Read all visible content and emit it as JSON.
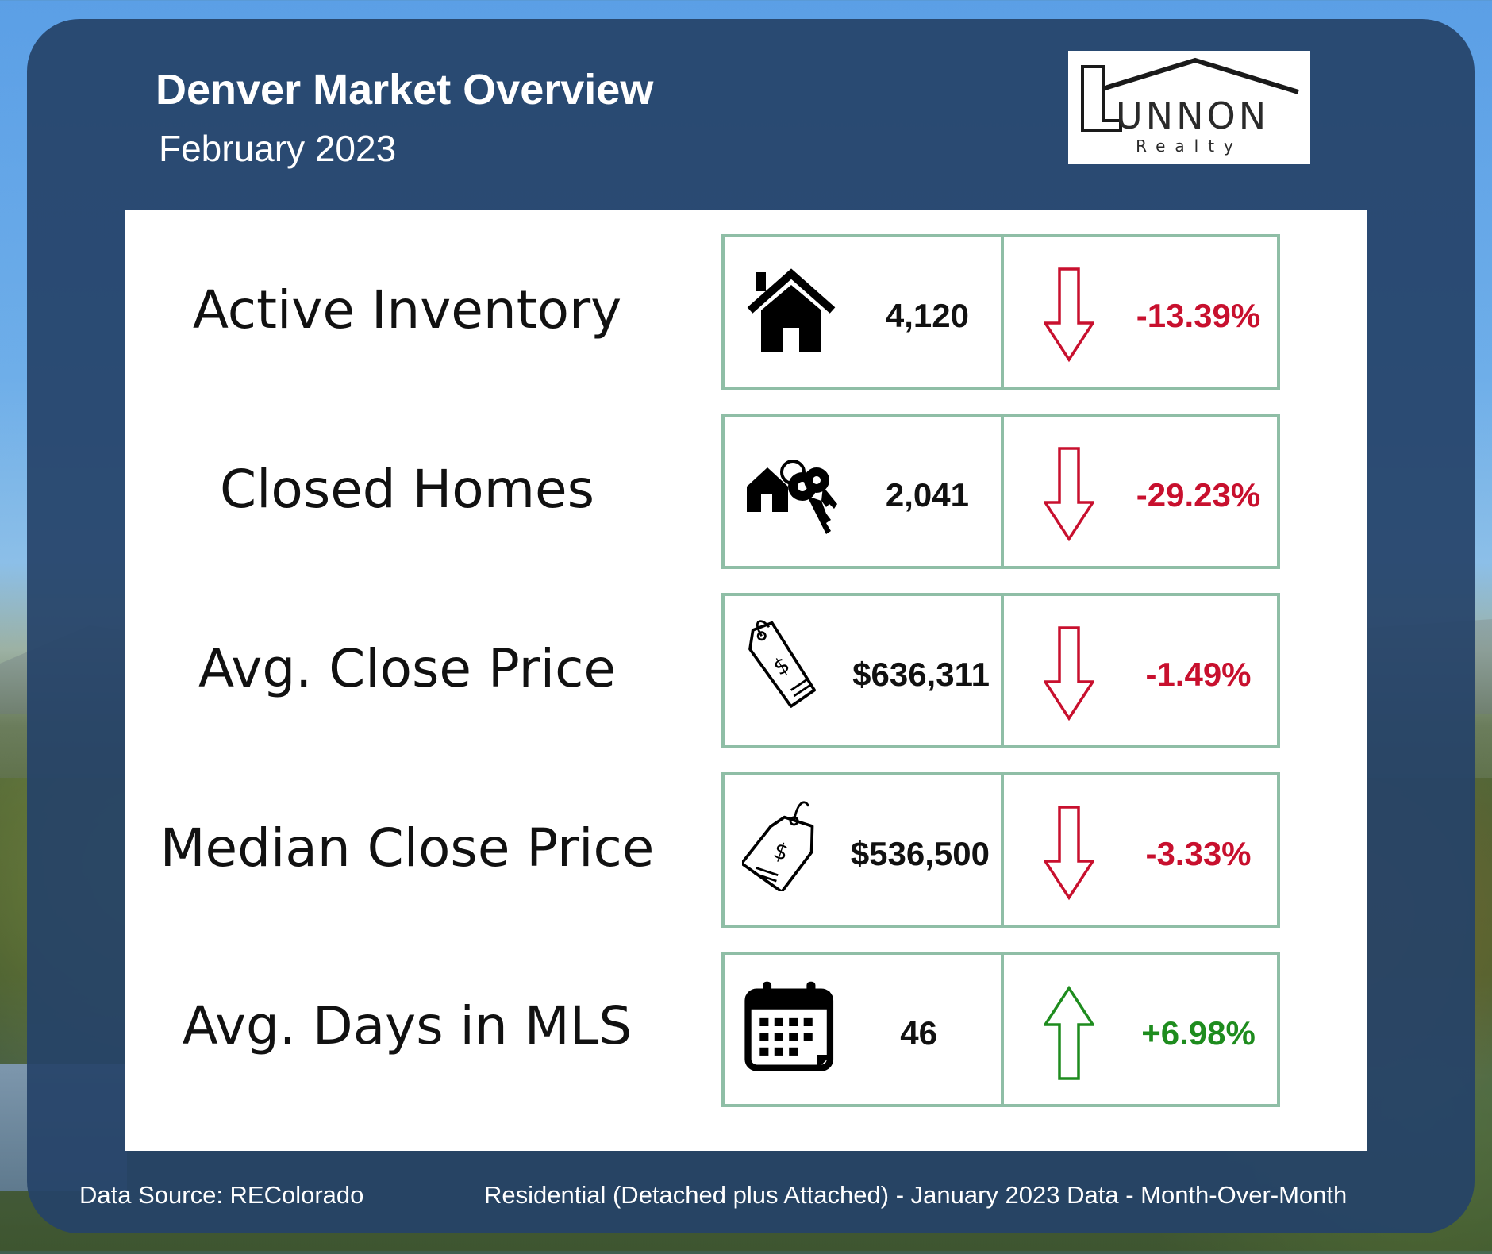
{
  "header": {
    "title": "Denver Market Overview",
    "subtitle": "February 2023"
  },
  "logo": {
    "name": "UNNON",
    "sub": "Realty",
    "initial": "L"
  },
  "colors": {
    "panel": "#254268",
    "border": "#8fbea6",
    "down": "#c8102e",
    "up": "#1e8c1e"
  },
  "metrics": [
    {
      "label": "Active Inventory",
      "icon": "house-icon",
      "value": "4,120",
      "change": "-13.39%",
      "direction": "down"
    },
    {
      "label": "Closed Homes",
      "icon": "keys-icon",
      "value": "2,041",
      "change": "-29.23%",
      "direction": "down"
    },
    {
      "label": "Avg. Close Price",
      "icon": "price-tag-icon",
      "value": "$636,311",
      "change": "-1.49%",
      "direction": "down"
    },
    {
      "label": "Median Close Price",
      "icon": "price-tag-icon",
      "value": "$536,500",
      "change": "-3.33%",
      "direction": "down"
    },
    {
      "label": "Avg. Days in MLS",
      "icon": "calendar-icon",
      "value": "46",
      "change": "+6.98%",
      "direction": "up"
    }
  ],
  "footer": {
    "source": "Data Source: REColorado",
    "note": "Residential (Detached plus Attached) - January 2023 Data - Month-Over-Month"
  }
}
